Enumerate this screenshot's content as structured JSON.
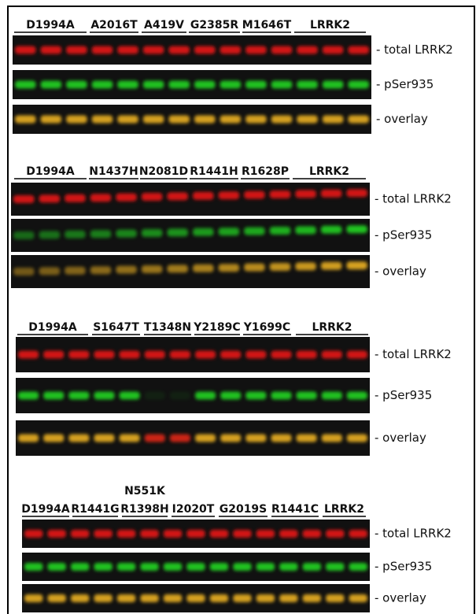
{
  "panels": [
    {
      "groups": [
        [
          "D1994A"
        ],
        [
          "A2016T"
        ],
        [
          "A419V"
        ],
        [
          "G2385R"
        ],
        [
          "M1646T"
        ],
        [
          "LRRK2"
        ]
      ],
      "rows": [
        "- total LRRK2",
        "- pSer935",
        "- overlay"
      ]
    },
    {
      "groups": [
        [
          "D1994A"
        ],
        [
          "N1437H"
        ],
        [
          "N2081D"
        ],
        [
          "R1441H"
        ],
        [
          "R1628P"
        ],
        [
          "LRRK2"
        ]
      ],
      "rows": [
        "- total LRRK2",
        "- pSer935",
        "- overlay"
      ]
    },
    {
      "groups": [
        [
          "D1994A"
        ],
        [
          "S1647T"
        ],
        [
          "T1348N"
        ],
        [
          "Y2189C"
        ],
        [
          "Y1699C"
        ],
        [
          "LRRK2"
        ]
      ],
      "rows": [
        "- total LRRK2",
        "- pSer935",
        "- overlay"
      ]
    },
    {
      "groups": [
        [
          "D1994A"
        ],
        [
          "R1441G"
        ],
        [
          "N551K",
          "R1398H"
        ],
        [
          "I2020T"
        ],
        [
          "G2019S"
        ],
        [
          "R1441C"
        ],
        [
          "LRRK2"
        ]
      ],
      "rows": [
        "- total LRRK2",
        "- pSer935",
        "- overlay"
      ]
    }
  ]
}
